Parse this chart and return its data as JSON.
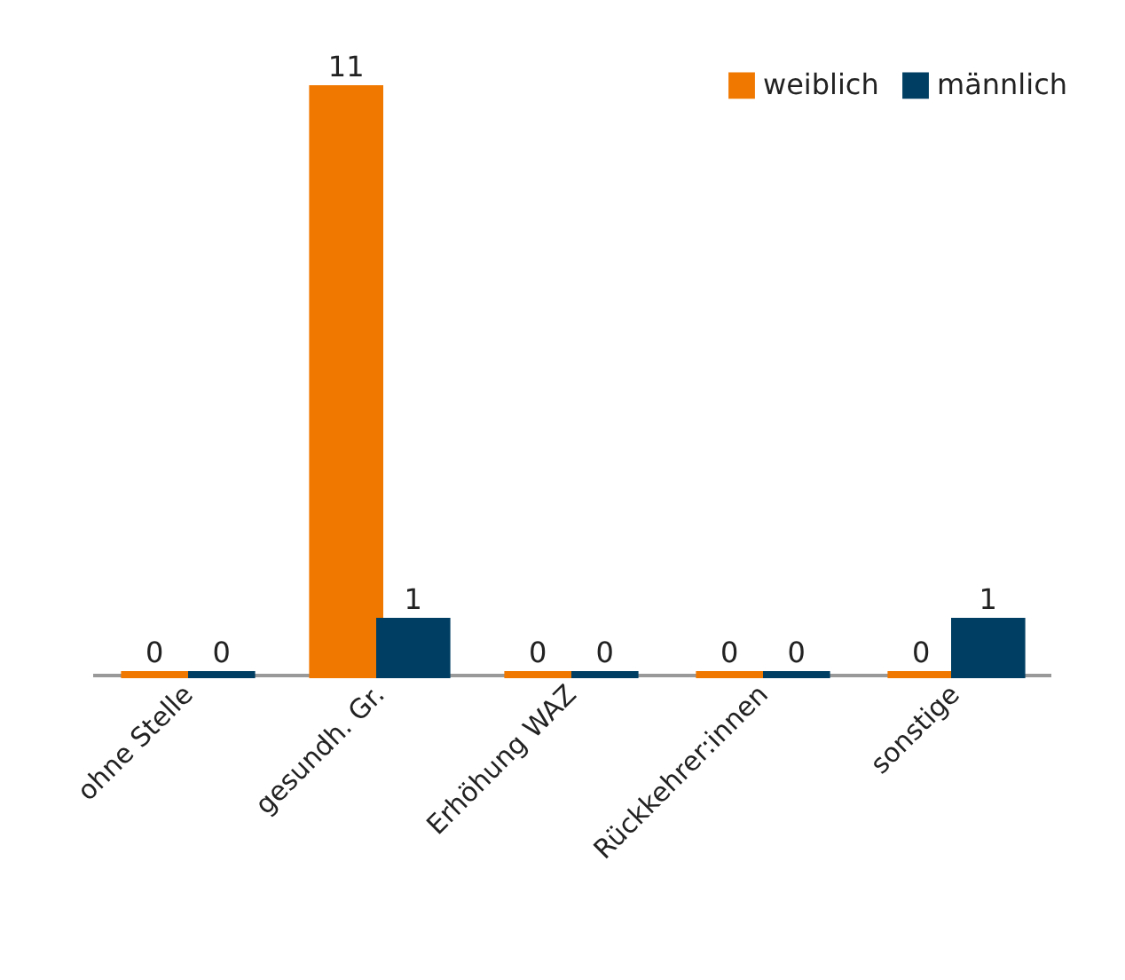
{
  "chart_data": {
    "type": "bar",
    "categories": [
      "ohne Stelle",
      "gesundh. Gr.",
      "Erhöhung WAZ",
      "Rückkehrer:innen",
      "sonstige"
    ],
    "series": [
      {
        "name": "weiblich",
        "color": "#f07800",
        "values": [
          0,
          11,
          0,
          0,
          0
        ]
      },
      {
        "name": "männlich",
        "color": "#003f63",
        "values": [
          0,
          1,
          0,
          0,
          1
        ]
      }
    ],
    "data_labels": true,
    "legend": "top right"
  }
}
